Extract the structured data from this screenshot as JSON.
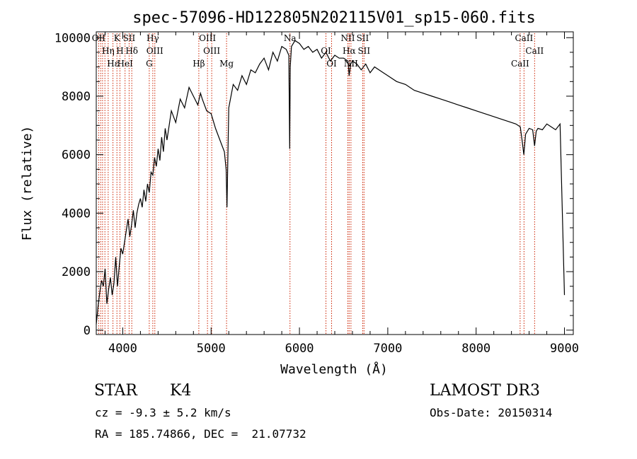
{
  "chart_data": {
    "type": "line",
    "title": "spec-57096-HD122805N202115V01_sp15-060.fits",
    "xlabel": "Wavelength (Å)",
    "ylabel": "Flux (relative)",
    "xlim": [
      3700,
      9100
    ],
    "ylim": [
      -150,
      10200
    ],
    "x_ticks": [
      4000,
      5000,
      6000,
      7000,
      8000,
      9000
    ],
    "y_ticks": [
      0,
      2000,
      4000,
      6000,
      8000,
      10000
    ],
    "grid": false,
    "series": [
      {
        "x": [
          3700,
          3720,
          3740,
          3760,
          3780,
          3800,
          3820,
          3840,
          3860,
          3880,
          3900,
          3920,
          3940,
          3960,
          3980,
          4000,
          4020,
          4040,
          4060,
          4080,
          4100,
          4120,
          4140,
          4160,
          4180,
          4200,
          4220,
          4240,
          4260,
          4280,
          4300,
          4320,
          4340,
          4360,
          4380,
          4400,
          4420,
          4440,
          4460,
          4480,
          4500,
          4550,
          4600,
          4650,
          4700,
          4750,
          4800,
          4850,
          4880,
          4900,
          4950,
          5000,
          5050,
          5100,
          5150,
          5170,
          5180,
          5200,
          5250,
          5300,
          5350,
          5400,
          5450,
          5500,
          5550,
          5600,
          5650,
          5700,
          5750,
          5800,
          5850,
          5880,
          5890,
          5896,
          5910,
          5950,
          6000,
          6050,
          6100,
          6150,
          6200,
          6250,
          6300,
          6350,
          6400,
          6450,
          6500,
          6550,
          6563,
          6580,
          6600,
          6650,
          6700,
          6750,
          6800,
          6850,
          6900,
          6950,
          7000,
          7100,
          7200,
          7300,
          7400,
          7500,
          7600,
          7700,
          7800,
          7900,
          8000,
          8100,
          8200,
          8300,
          8400,
          8450,
          8500,
          8520,
          8540,
          8560,
          8600,
          8640,
          8662,
          8680,
          8700,
          8750,
          8800,
          8850,
          8900,
          8950,
          9000
        ],
        "y": [
          200,
          800,
          1300,
          1700,
          1500,
          2100,
          900,
          1400,
          1800,
          1200,
          1600,
          2500,
          1500,
          2200,
          2800,
          2600,
          3000,
          3400,
          3800,
          3200,
          3600,
          4100,
          3500,
          4000,
          4300,
          4500,
          4200,
          4800,
          4400,
          5000,
          4700,
          5400,
          5300,
          5900,
          5600,
          6200,
          5800,
          6600,
          6100,
          6900,
          6500,
          7500,
          7100,
          7900,
          7600,
          8300,
          8000,
          7700,
          8100,
          7900,
          7500,
          7400,
          6900,
          6500,
          6100,
          5500,
          4200,
          7600,
          8400,
          8200,
          8700,
          8400,
          8900,
          8800,
          9100,
          9300,
          8900,
          9500,
          9200,
          9700,
          9600,
          9400,
          6200,
          9000,
          9700,
          9900,
          9800,
          9600,
          9700,
          9500,
          9600,
          9300,
          9500,
          9200,
          9400,
          9300,
          9300,
          9200,
          8700,
          9100,
          9200,
          9100,
          8900,
          9100,
          8800,
          9000,
          8900,
          8800,
          8700,
          8500,
          8400,
          8200,
          8100,
          8000,
          7900,
          7800,
          7700,
          7600,
          7500,
          7400,
          7300,
          7200,
          7100,
          7050,
          6950,
          6500,
          6000,
          6700,
          6900,
          6850,
          6300,
          6800,
          6900,
          6850,
          7050,
          6950,
          6850,
          7050,
          1200
        ]
      }
    ],
    "lines": [
      {
        "x": 3727,
        "label": "OII"
      },
      {
        "x": 3750,
        "label": ""
      },
      {
        "x": 3771,
        "label": ""
      },
      {
        "x": 3798,
        "label": ""
      },
      {
        "x": 3835,
        "label": "Hη"
      },
      {
        "x": 3889,
        "label": "Hε"
      },
      {
        "x": 3934,
        "label": "K"
      },
      {
        "x": 3968,
        "label": "H"
      },
      {
        "x": 4026,
        "label": "HeI"
      },
      {
        "x": 4072,
        "label": "SII"
      },
      {
        "x": 4102,
        "label": "Hδ"
      },
      {
        "x": 4300,
        "label": "G"
      },
      {
        "x": 4340,
        "label": "Hγ"
      },
      {
        "x": 4363,
        "label": "OIII"
      },
      {
        "x": 4861,
        "label": "Hβ"
      },
      {
        "x": 4959,
        "label": "OIII"
      },
      {
        "x": 5007,
        "label": "OIII"
      },
      {
        "x": 5175,
        "label": "Mg"
      },
      {
        "x": 5893,
        "label": "Na"
      },
      {
        "x": 6300,
        "label": "OI"
      },
      {
        "x": 6364,
        "label": "OI"
      },
      {
        "x": 6548,
        "label": "NII"
      },
      {
        "x": 6563,
        "label": "Hα"
      },
      {
        "x": 6583,
        "label": "NII"
      },
      {
        "x": 6716,
        "label": "SII"
      },
      {
        "x": 6731,
        "label": "SII"
      },
      {
        "x": 8498,
        "label": "CaII"
      },
      {
        "x": 8542,
        "label": "CaII"
      },
      {
        "x": 8662,
        "label": "CaII"
      }
    ],
    "line_color": "#cc2200"
  },
  "info": {
    "object_class": "STAR",
    "subclass": "K4",
    "survey": "LAMOST DR3",
    "redshift": "cz = -9.3 ± 5.2 km/s",
    "obs_date": "Obs-Date: 20150314",
    "coords": "RA = 185.74866, DEC =  21.07732"
  }
}
